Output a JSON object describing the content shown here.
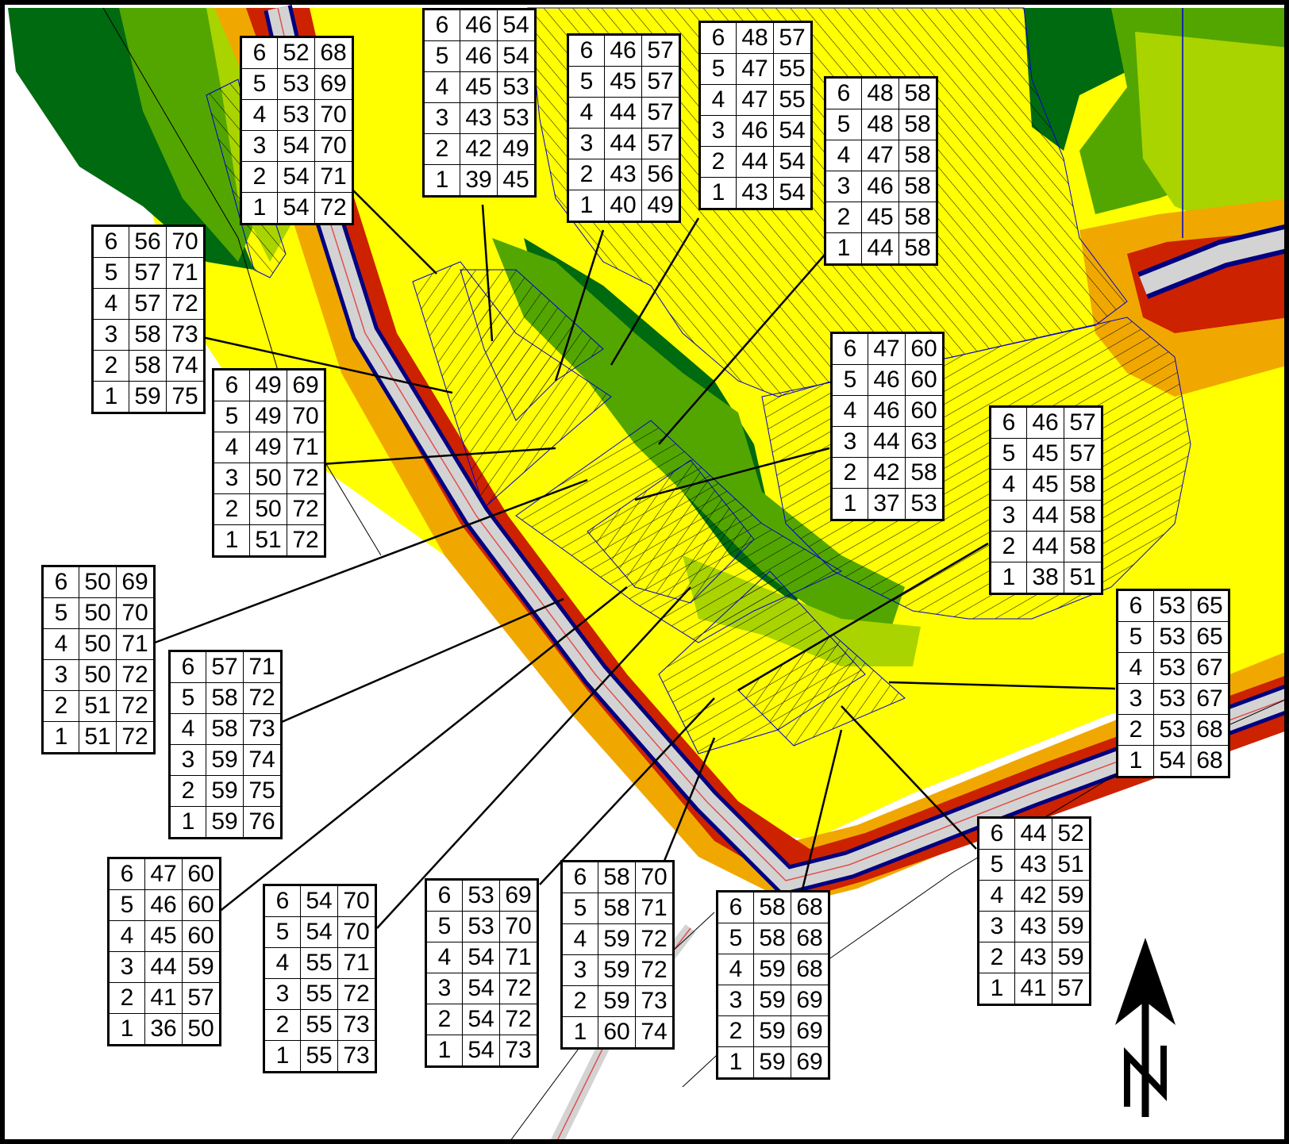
{
  "colors": {
    "dark_green": "#006a11",
    "green": "#53a600",
    "light_green": "#a9d400",
    "yellow_green": "#d7e800",
    "yellow": "#ffff00",
    "orange": "#f0a800",
    "dark_orange": "#e06800",
    "red": "#cc2200",
    "dark_red": "#aa0000",
    "road_blue": "#000080",
    "road_grey": "#d3d3d3",
    "building_outline": "#0000cc"
  },
  "north_arrow": {
    "icon": "north-arrow-icon"
  },
  "tables": [
    {
      "rows": [
        [
          "6",
          "52",
          "68"
        ],
        [
          "5",
          "53",
          "69"
        ],
        [
          "4",
          "53",
          "70"
        ],
        [
          "3",
          "54",
          "70"
        ],
        [
          "2",
          "54",
          "71"
        ],
        [
          "1",
          "54",
          "72"
        ]
      ]
    },
    {
      "rows": [
        [
          "6",
          "46",
          "54"
        ],
        [
          "5",
          "46",
          "54"
        ],
        [
          "4",
          "45",
          "53"
        ],
        [
          "3",
          "43",
          "53"
        ],
        [
          "2",
          "42",
          "49"
        ],
        [
          "1",
          "39",
          "45"
        ]
      ]
    },
    {
      "rows": [
        [
          "6",
          "46",
          "57"
        ],
        [
          "5",
          "45",
          "57"
        ],
        [
          "4",
          "44",
          "57"
        ],
        [
          "3",
          "44",
          "57"
        ],
        [
          "2",
          "43",
          "56"
        ],
        [
          "1",
          "40",
          "49"
        ]
      ]
    },
    {
      "rows": [
        [
          "6",
          "48",
          "57"
        ],
        [
          "5",
          "47",
          "55"
        ],
        [
          "4",
          "47",
          "55"
        ],
        [
          "3",
          "46",
          "54"
        ],
        [
          "2",
          "44",
          "54"
        ],
        [
          "1",
          "43",
          "54"
        ]
      ]
    },
    {
      "rows": [
        [
          "6",
          "48",
          "58"
        ],
        [
          "5",
          "48",
          "58"
        ],
        [
          "4",
          "47",
          "58"
        ],
        [
          "3",
          "46",
          "58"
        ],
        [
          "2",
          "45",
          "58"
        ],
        [
          "1",
          "44",
          "58"
        ]
      ]
    },
    {
      "rows": [
        [
          "6",
          "56",
          "70"
        ],
        [
          "5",
          "57",
          "71"
        ],
        [
          "4",
          "57",
          "72"
        ],
        [
          "3",
          "58",
          "73"
        ],
        [
          "2",
          "58",
          "74"
        ],
        [
          "1",
          "59",
          "75"
        ]
      ]
    },
    {
      "rows": [
        [
          "6",
          "49",
          "69"
        ],
        [
          "5",
          "49",
          "70"
        ],
        [
          "4",
          "49",
          "71"
        ],
        [
          "3",
          "50",
          "72"
        ],
        [
          "2",
          "50",
          "72"
        ],
        [
          "1",
          "51",
          "72"
        ]
      ]
    },
    {
      "rows": [
        [
          "6",
          "47",
          "60"
        ],
        [
          "5",
          "46",
          "60"
        ],
        [
          "4",
          "46",
          "60"
        ],
        [
          "3",
          "44",
          "63"
        ],
        [
          "2",
          "42",
          "58"
        ],
        [
          "1",
          "37",
          "53"
        ]
      ]
    },
    {
      "rows": [
        [
          "6",
          "46",
          "57"
        ],
        [
          "5",
          "45",
          "57"
        ],
        [
          "4",
          "45",
          "58"
        ],
        [
          "3",
          "44",
          "58"
        ],
        [
          "2",
          "44",
          "58"
        ],
        [
          "1",
          "38",
          "51"
        ]
      ]
    },
    {
      "rows": [
        [
          "6",
          "50",
          "69"
        ],
        [
          "5",
          "50",
          "70"
        ],
        [
          "4",
          "50",
          "71"
        ],
        [
          "3",
          "50",
          "72"
        ],
        [
          "2",
          "51",
          "72"
        ],
        [
          "1",
          "51",
          "72"
        ]
      ]
    },
    {
      "rows": [
        [
          "6",
          "57",
          "71"
        ],
        [
          "5",
          "58",
          "72"
        ],
        [
          "4",
          "58",
          "73"
        ],
        [
          "3",
          "59",
          "74"
        ],
        [
          "2",
          "59",
          "75"
        ],
        [
          "1",
          "59",
          "76"
        ]
      ]
    },
    {
      "rows": [
        [
          "6",
          "53",
          "65"
        ],
        [
          "5",
          "53",
          "65"
        ],
        [
          "4",
          "53",
          "67"
        ],
        [
          "3",
          "53",
          "67"
        ],
        [
          "2",
          "53",
          "68"
        ],
        [
          "1",
          "54",
          "68"
        ]
      ]
    },
    {
      "rows": [
        [
          "6",
          "47",
          "60"
        ],
        [
          "5",
          "46",
          "60"
        ],
        [
          "4",
          "45",
          "60"
        ],
        [
          "3",
          "44",
          "59"
        ],
        [
          "2",
          "41",
          "57"
        ],
        [
          "1",
          "36",
          "50"
        ]
      ]
    },
    {
      "rows": [
        [
          "6",
          "54",
          "70"
        ],
        [
          "5",
          "54",
          "70"
        ],
        [
          "4",
          "55",
          "71"
        ],
        [
          "3",
          "55",
          "72"
        ],
        [
          "2",
          "55",
          "73"
        ],
        [
          "1",
          "55",
          "73"
        ]
      ]
    },
    {
      "rows": [
        [
          "6",
          "53",
          "69"
        ],
        [
          "5",
          "53",
          "70"
        ],
        [
          "4",
          "54",
          "71"
        ],
        [
          "3",
          "54",
          "72"
        ],
        [
          "2",
          "54",
          "72"
        ],
        [
          "1",
          "54",
          "73"
        ]
      ]
    },
    {
      "rows": [
        [
          "6",
          "58",
          "70"
        ],
        [
          "5",
          "58",
          "71"
        ],
        [
          "4",
          "59",
          "72"
        ],
        [
          "3",
          "59",
          "72"
        ],
        [
          "2",
          "59",
          "73"
        ],
        [
          "1",
          "60",
          "74"
        ]
      ]
    },
    {
      "rows": [
        [
          "6",
          "58",
          "68"
        ],
        [
          "5",
          "58",
          "68"
        ],
        [
          "4",
          "59",
          "68"
        ],
        [
          "3",
          "59",
          "69"
        ],
        [
          "2",
          "59",
          "69"
        ],
        [
          "1",
          "59",
          "69"
        ]
      ]
    },
    {
      "rows": [
        [
          "6",
          "44",
          "52"
        ],
        [
          "5",
          "43",
          "51"
        ],
        [
          "4",
          "42",
          "59"
        ],
        [
          "3",
          "43",
          "59"
        ],
        [
          "2",
          "43",
          "59"
        ],
        [
          "1",
          "41",
          "57"
        ]
      ]
    }
  ]
}
